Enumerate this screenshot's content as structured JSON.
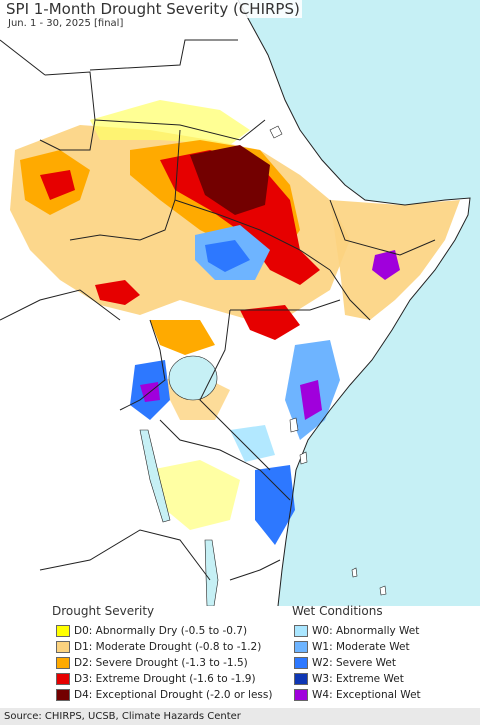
{
  "map": {
    "title": "SPI 1-Month Drought Severity (CHIRPS)",
    "subtitle": "Jun. 1 - 30, 2025 [final]",
    "colors": {
      "ocean": "#c6f0f5",
      "land": "#ffffff",
      "border": "#222222",
      "admin": "#888888"
    }
  },
  "legend": {
    "drought_title": "Drought Severity",
    "wet_title": "Wet Conditions",
    "drought": [
      {
        "code": "D0",
        "label": "D0: Abnormally Dry (-0.5 to -0.7)",
        "color": "#ffff00"
      },
      {
        "code": "D1",
        "label": "D1: Moderate Drought (-0.8 to -1.2)",
        "color": "#fcd37f"
      },
      {
        "code": "D2",
        "label": "D2: Severe Drought (-1.3 to -1.5)",
        "color": "#ffaa00"
      },
      {
        "code": "D3",
        "label": "D3: Extreme Drought (-1.6 to -1.9)",
        "color": "#e60000"
      },
      {
        "code": "D4",
        "label": "D4: Exceptional Drought (-2.0 or less)",
        "color": "#730000"
      }
    ],
    "wet": [
      {
        "code": "W0",
        "label": "W0: Abnormally Wet",
        "color": "#aae6ff"
      },
      {
        "code": "W1",
        "label": "W1: Moderate Wet",
        "color": "#6eb4ff"
      },
      {
        "code": "W2",
        "label": "W2: Severe Wet",
        "color": "#2d78ff"
      },
      {
        "code": "W3",
        "label": "W3: Extreme Wet",
        "color": "#0f37b4"
      },
      {
        "code": "W4",
        "label": "W4: Exceptional Wet",
        "color": "#a000dc"
      }
    ]
  },
  "footer": {
    "source": "Source: CHIRPS, UCSB, Climate Hazards Center"
  }
}
